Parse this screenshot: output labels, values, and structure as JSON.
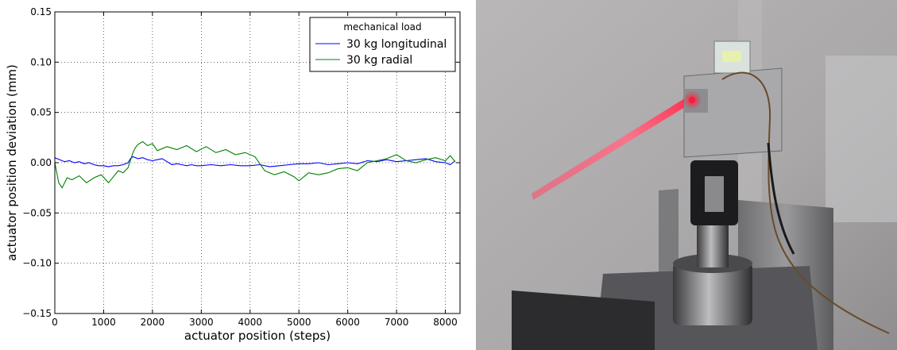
{
  "chart_data": {
    "type": "line",
    "title": "",
    "xlabel": "actuator position (steps)",
    "ylabel": "actuator position deviation (mm)",
    "xlim": [
      0,
      8300
    ],
    "ylim": [
      -0.15,
      0.15
    ],
    "xticks": [
      0,
      1000,
      2000,
      3000,
      4000,
      5000,
      6000,
      7000,
      8000
    ],
    "yticks": [
      -0.15,
      -0.1,
      -0.05,
      0.0,
      0.05,
      0.1,
      0.15
    ],
    "xtick_labels": [
      "0",
      "1000",
      "2000",
      "3000",
      "4000",
      "5000",
      "6000",
      "7000",
      "8000"
    ],
    "ytick_labels": [
      "−0.15",
      "−0.10",
      "−0.05",
      "0.00",
      "0.05",
      "0.10",
      "0.15"
    ],
    "grid": true,
    "legend": {
      "title": "mechanical load",
      "placement": "top-right"
    },
    "series": [
      {
        "name": "30 kg longitudinal",
        "color": "#0000ff",
        "x": [
          0,
          100,
          200,
          300,
          400,
          500,
          600,
          700,
          800,
          900,
          1000,
          1100,
          1200,
          1300,
          1400,
          1500,
          1550,
          1600,
          1700,
          1800,
          1900,
          2000,
          2100,
          2200,
          2300,
          2400,
          2500,
          2600,
          2700,
          2800,
          2900,
          3000,
          3200,
          3400,
          3600,
          3800,
          4000,
          4200,
          4400,
          4600,
          4800,
          5000,
          5200,
          5400,
          5600,
          5800,
          6000,
          6200,
          6400,
          6600,
          6800,
          7000,
          7200,
          7400,
          7600,
          7800,
          8000,
          8100,
          8200
        ],
        "y": [
          0.005,
          0.003,
          0.001,
          0.002,
          0.0,
          0.001,
          -0.001,
          0.0,
          -0.002,
          -0.003,
          -0.003,
          -0.004,
          -0.003,
          -0.003,
          -0.002,
          0.0,
          0.004,
          0.006,
          0.004,
          0.005,
          0.003,
          0.002,
          0.003,
          0.004,
          0.001,
          -0.002,
          -0.001,
          -0.002,
          -0.003,
          -0.002,
          -0.003,
          -0.003,
          -0.002,
          -0.003,
          -0.002,
          -0.003,
          -0.003,
          -0.002,
          -0.004,
          -0.003,
          -0.002,
          -0.001,
          -0.001,
          0.0,
          -0.002,
          -0.001,
          0.0,
          -0.001,
          0.002,
          0.001,
          0.003,
          0.001,
          0.002,
          0.003,
          0.004,
          0.001,
          0.0,
          -0.002,
          0.002
        ]
      },
      {
        "name": "30 kg radial",
        "color": "#008000",
        "x": [
          0,
          80,
          150,
          250,
          350,
          500,
          650,
          800,
          950,
          1100,
          1200,
          1300,
          1400,
          1500,
          1600,
          1650,
          1700,
          1800,
          1900,
          2000,
          2100,
          2300,
          2500,
          2700,
          2900,
          3100,
          3300,
          3500,
          3700,
          3900,
          4100,
          4300,
          4400,
          4500,
          4700,
          4900,
          5000,
          5200,
          5400,
          5600,
          5800,
          6000,
          6200,
          6400,
          6600,
          6800,
          7000,
          7200,
          7400,
          7600,
          7800,
          8000,
          8100,
          8200
        ],
        "y": [
          0.0,
          -0.02,
          -0.025,
          -0.015,
          -0.017,
          -0.013,
          -0.02,
          -0.015,
          -0.012,
          -0.02,
          -0.014,
          -0.008,
          -0.01,
          -0.005,
          0.01,
          0.015,
          0.018,
          0.021,
          0.017,
          0.019,
          0.012,
          0.016,
          0.013,
          0.017,
          0.011,
          0.016,
          0.01,
          0.013,
          0.008,
          0.01,
          0.006,
          -0.008,
          -0.01,
          -0.012,
          -0.009,
          -0.014,
          -0.018,
          -0.01,
          -0.012,
          -0.01,
          -0.006,
          -0.005,
          -0.008,
          0.0,
          0.002,
          0.004,
          0.008,
          0.002,
          0.0,
          0.003,
          0.005,
          0.002,
          0.007,
          0.001
        ]
      }
    ]
  }
}
